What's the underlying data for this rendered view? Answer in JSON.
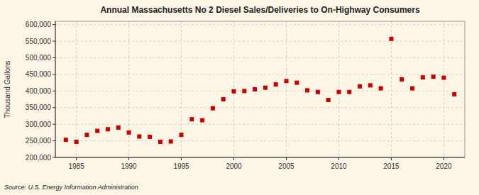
{
  "chart_data": {
    "type": "scatter",
    "title": "Annual Massachusetts No 2 Diesel Sales/Deliveries to On-Highway Consumers",
    "ylabel": "Thousand Gallons",
    "source": "Source: U.S. Energy Information Administration",
    "x": [
      1984,
      1985,
      1986,
      1987,
      1988,
      1989,
      1990,
      1991,
      1992,
      1993,
      1994,
      1995,
      1996,
      1997,
      1998,
      1999,
      2000,
      2001,
      2002,
      2003,
      2004,
      2005,
      2006,
      2007,
      2008,
      2009,
      2010,
      2011,
      2012,
      2013,
      2014,
      2015,
      2016,
      2017,
      2018,
      2019,
      2020,
      2021
    ],
    "values": [
      253000,
      247000,
      268000,
      280000,
      285000,
      290000,
      275000,
      263000,
      262000,
      247000,
      248000,
      268000,
      315000,
      312000,
      348000,
      375000,
      399000,
      400000,
      405000,
      410000,
      420000,
      430000,
      425000,
      402000,
      397000,
      373000,
      397000,
      397000,
      414000,
      417000,
      408000,
      557000,
      435000,
      408000,
      441000,
      443000,
      440000,
      390000
    ],
    "color": "#cc0000",
    "marker": "square",
    "xlim": [
      1983,
      2022
    ],
    "xticks": [
      1985,
      1990,
      1995,
      2000,
      2005,
      2010,
      2015,
      2020
    ],
    "ylim": [
      200000,
      610000
    ],
    "yticks": [
      {
        "value": 200000,
        "label": "200,000"
      },
      {
        "value": 250000,
        "label": "250,000"
      },
      {
        "value": 300000,
        "label": "300,000"
      },
      {
        "value": 350000,
        "label": "350,000"
      },
      {
        "value": 400000,
        "label": "400,000"
      },
      {
        "value": 450000,
        "label": "450,000"
      },
      {
        "value": 500000,
        "label": "500,000"
      },
      {
        "value": 550000,
        "label": "550,000"
      },
      {
        "value": 600000,
        "label": "600,000"
      }
    ],
    "grid": true
  }
}
